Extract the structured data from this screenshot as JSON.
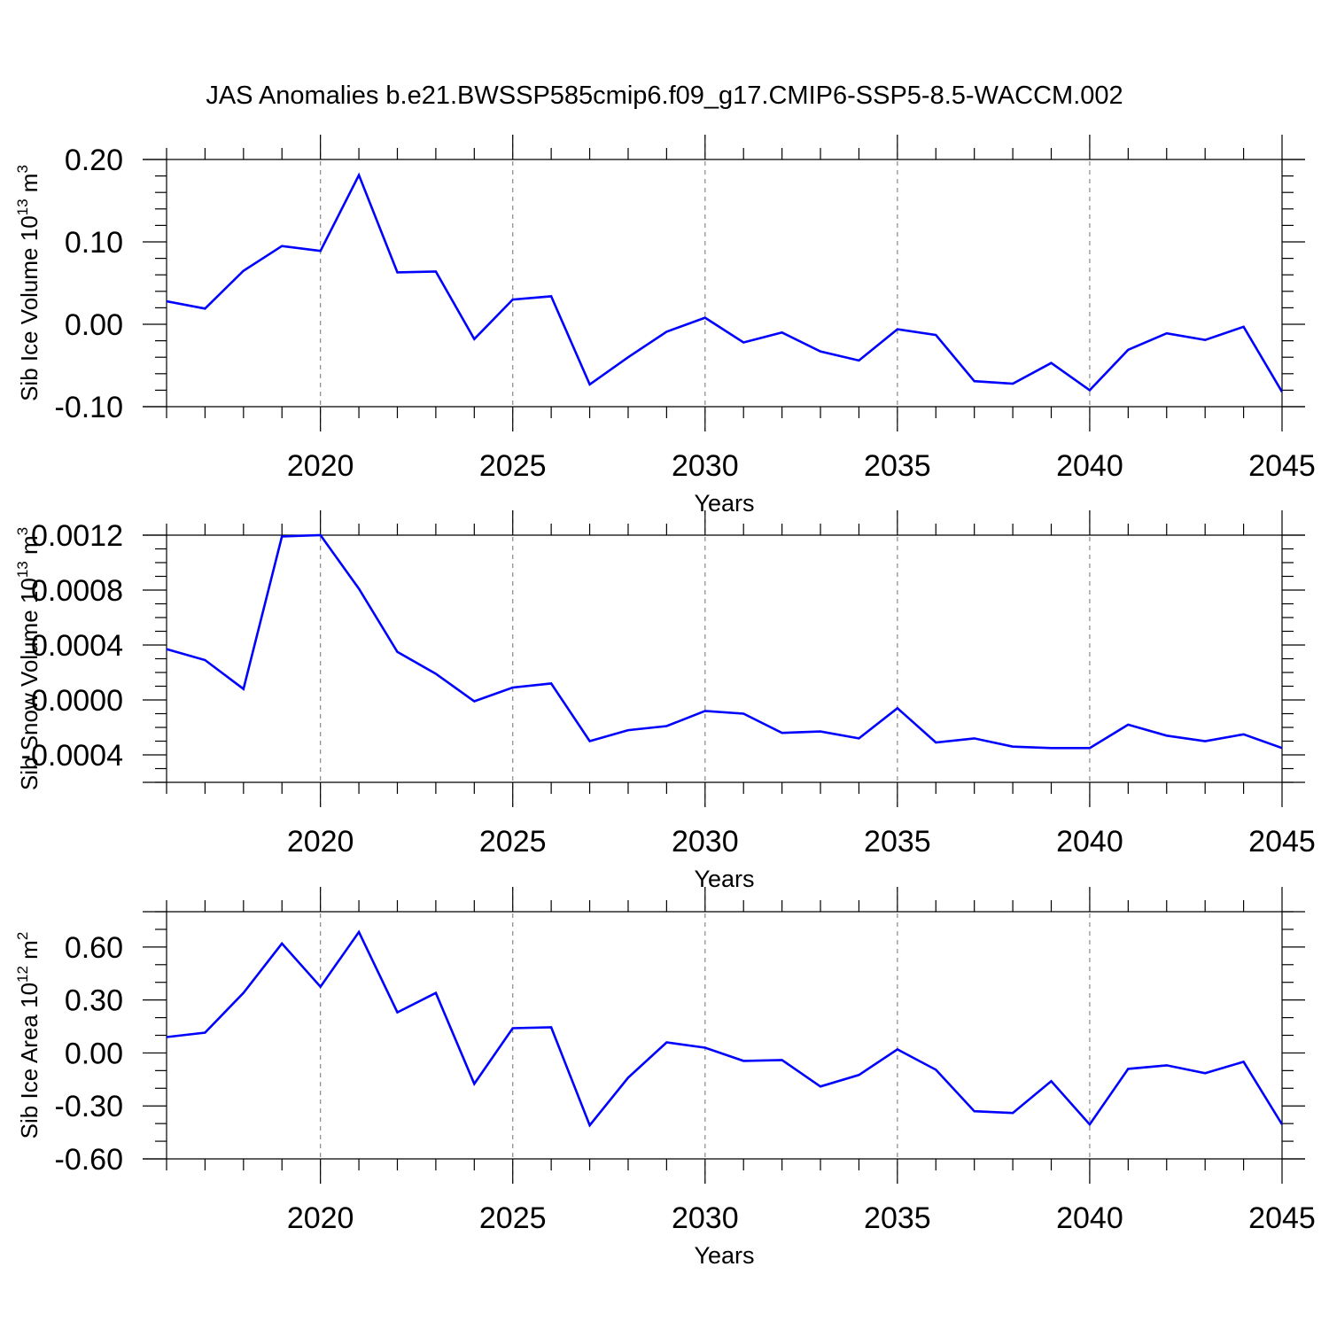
{
  "title": "JAS Anomalies b.e21.BWSSP585cmip6.f09_g17.CMIP6-SSP5-8.5-WACCM.002",
  "chart_data": [
    {
      "type": "line",
      "ylabel_text": "Sib Ice Volume 10",
      "ylabel_exp": "13",
      "ylabel_unit": " m",
      "ylabel_unit_exp": "3",
      "xlabel": "Years",
      "xlim": [
        2016,
        2045
      ],
      "ylim": [
        -0.1,
        0.2
      ],
      "xticks": [
        2020,
        2025,
        2030,
        2035,
        2040,
        2045
      ],
      "yticks": [
        -0.1,
        0.0,
        0.1,
        0.2
      ],
      "ytick_labels": [
        "-0.10",
        "0.00",
        "0.10",
        "0.20"
      ],
      "yminor_step": 0.02,
      "x": [
        2016,
        2017,
        2018,
        2019,
        2020,
        2021,
        2022,
        2023,
        2024,
        2025,
        2026,
        2027,
        2028,
        2029,
        2030,
        2031,
        2032,
        2033,
        2034,
        2035,
        2036,
        2037,
        2038,
        2039,
        2040,
        2041,
        2042,
        2043,
        2044,
        2045
      ],
      "values": [
        0.028,
        0.019,
        0.065,
        0.095,
        0.089,
        0.181,
        0.063,
        0.064,
        -0.018,
        0.03,
        0.034,
        -0.073,
        -0.04,
        -0.009,
        0.008,
        -0.022,
        -0.01,
        -0.033,
        -0.044,
        -0.006,
        -0.013,
        -0.069,
        -0.072,
        -0.047,
        -0.08,
        -0.031,
        -0.011,
        -0.019,
        -0.003,
        -0.082
      ]
    },
    {
      "type": "line",
      "ylabel_text": "Sib Snow Volume 10",
      "ylabel_exp": "13",
      "ylabel_unit": " m",
      "ylabel_unit_exp": "3",
      "xlabel": "Years",
      "xlim": [
        2016,
        2045
      ],
      "ylim": [
        -0.0006,
        0.0012
      ],
      "xticks": [
        2020,
        2025,
        2030,
        2035,
        2040,
        2045
      ],
      "yticks": [
        -0.0004,
        0.0,
        0.0004,
        0.0008,
        0.0012
      ],
      "ytick_labels": [
        "-0.0004",
        "0.0000",
        "0.0004",
        "0.0008",
        "0.0012"
      ],
      "yminor_step": 0.0001,
      "x": [
        2016,
        2017,
        2018,
        2019,
        2020,
        2021,
        2022,
        2023,
        2024,
        2025,
        2026,
        2027,
        2028,
        2029,
        2030,
        2031,
        2032,
        2033,
        2034,
        2035,
        2036,
        2037,
        2038,
        2039,
        2040,
        2041,
        2042,
        2043,
        2044,
        2045
      ],
      "values": [
        0.00037,
        0.00029,
        8e-05,
        0.00119,
        0.0012,
        0.00081,
        0.00035,
        0.00019,
        -1e-05,
        9e-05,
        0.00012,
        -0.0003,
        -0.00022,
        -0.00019,
        -8e-05,
        -0.0001,
        -0.00024,
        -0.00023,
        -0.00028,
        -6e-05,
        -0.00031,
        -0.00028,
        -0.00034,
        -0.00035,
        -0.00035,
        -0.00018,
        -0.00026,
        -0.0003,
        -0.00025,
        -0.00035
      ]
    },
    {
      "type": "line",
      "ylabel_text": "Sib Ice Area 10",
      "ylabel_exp": "12",
      "ylabel_unit": " m",
      "ylabel_unit_exp": "2",
      "xlabel": "Years",
      "xlim": [
        2016,
        2045
      ],
      "ylim": [
        -0.6,
        0.8
      ],
      "xticks": [
        2020,
        2025,
        2030,
        2035,
        2040,
        2045
      ],
      "yticks": [
        -0.6,
        -0.3,
        0.0,
        0.3,
        0.6
      ],
      "ytick_labels": [
        "-0.60",
        "-0.30",
        "0.00",
        "0.30",
        "0.60"
      ],
      "yminor_step": 0.1,
      "x": [
        2016,
        2017,
        2018,
        2019,
        2020,
        2021,
        2022,
        2023,
        2024,
        2025,
        2026,
        2027,
        2028,
        2029,
        2030,
        2031,
        2032,
        2033,
        2034,
        2035,
        2036,
        2037,
        2038,
        2039,
        2040,
        2041,
        2042,
        2043,
        2044,
        2045
      ],
      "values": [
        0.09,
        0.115,
        0.34,
        0.62,
        0.375,
        0.685,
        0.23,
        0.34,
        -0.175,
        0.14,
        0.145,
        -0.41,
        -0.14,
        0.06,
        0.03,
        -0.045,
        -0.04,
        -0.19,
        -0.125,
        0.02,
        -0.095,
        -0.33,
        -0.34,
        -0.16,
        -0.405,
        -0.09,
        -0.07,
        -0.115,
        -0.05,
        -0.405
      ]
    }
  ]
}
